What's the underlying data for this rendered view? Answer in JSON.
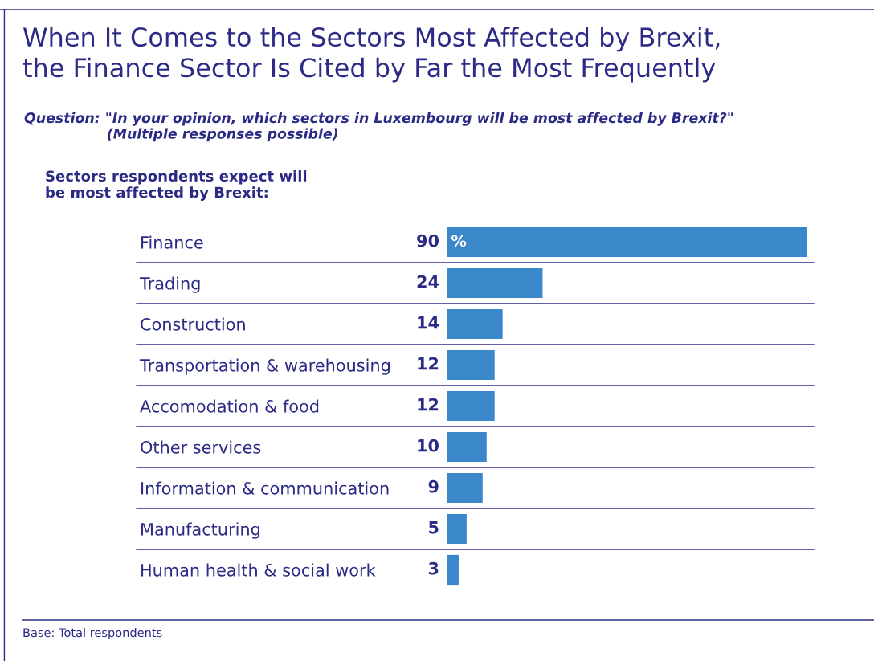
{
  "chart_data": {
    "type": "bar",
    "orientation": "horizontal",
    "title": "When It Comes to the Sectors Most Affected by Brexit,\nthe Finance Sector Is Cited by Far the Most Frequently",
    "subtitle": "Question: \"In your opinion, which sectors in Luxembourg will be most affected by Brexit?\"\n                 (Multiple responses possible)",
    "ylabel": "Sectors respondents expect will\nbe most affected by Brexit:",
    "categories": [
      "Finance",
      "Trading",
      "Construction",
      "Transportation & warehousing",
      "Accomodation & food",
      "Other services",
      "Information & communication",
      "Manufacturing",
      "Human health & social work"
    ],
    "values": [
      90,
      24,
      14,
      12,
      12,
      10,
      9,
      5,
      3
    ],
    "color": "#3a87c9",
    "data_labels": true,
    "xlim": [
      0,
      90
    ],
    "grid": "y",
    "annotations": [
      "%",
      "Base: Total respondents"
    ]
  }
}
